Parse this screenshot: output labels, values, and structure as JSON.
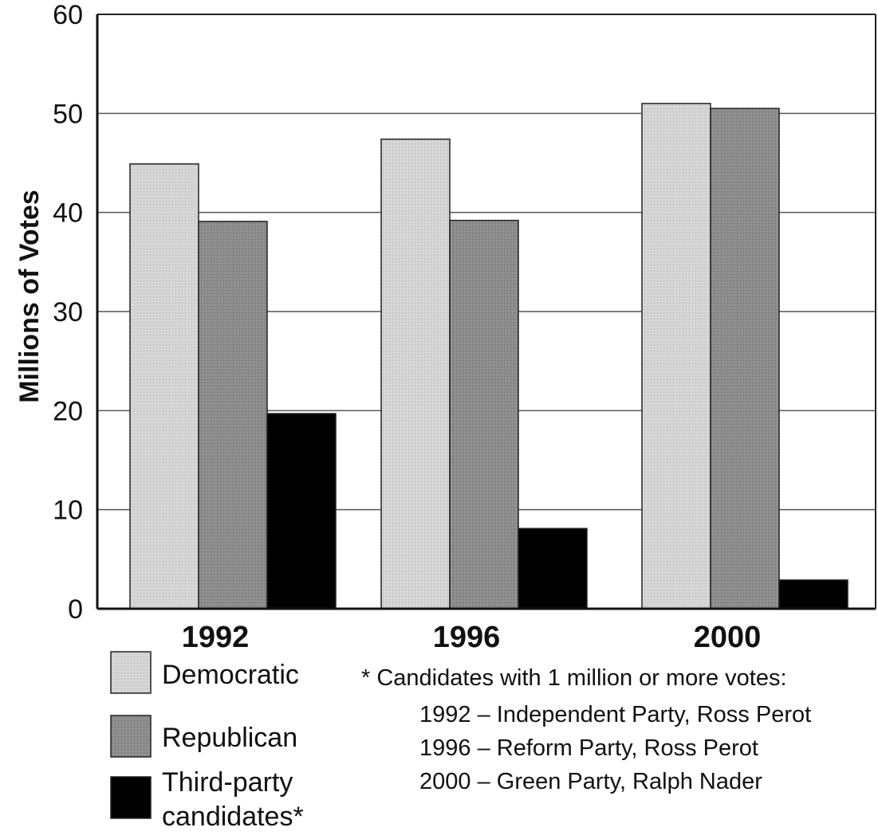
{
  "chart_data": {
    "type": "bar",
    "categories": [
      "1992",
      "1996",
      "2000"
    ],
    "series": [
      {
        "name": "Democratic",
        "values": [
          44.9,
          47.4,
          51.0
        ],
        "color": "#d2d2d2"
      },
      {
        "name": "Republican",
        "values": [
          39.1,
          39.2,
          50.5
        ],
        "color": "#8a8a8a"
      },
      {
        "name": "Third-party candidates*",
        "legend_lines": [
          "Third-party",
          "candidates*"
        ],
        "values": [
          19.7,
          8.1,
          2.9
        ],
        "color": "#000000"
      }
    ],
    "ylabel": "Millions of Votes",
    "ylim": [
      0,
      60
    ],
    "yticks": [
      "0",
      "10",
      "20",
      "30",
      "40",
      "50",
      "60"
    ],
    "grid": true,
    "legend_position": "bottom-left",
    "footnote": {
      "heading": "* Candidates with 1 million or more votes:",
      "lines": [
        "1992 – Independent Party, Ross Perot",
        "1996 – Reform Party, Ross Perot",
        "2000 – Green Party, Ralph Nader"
      ]
    }
  }
}
